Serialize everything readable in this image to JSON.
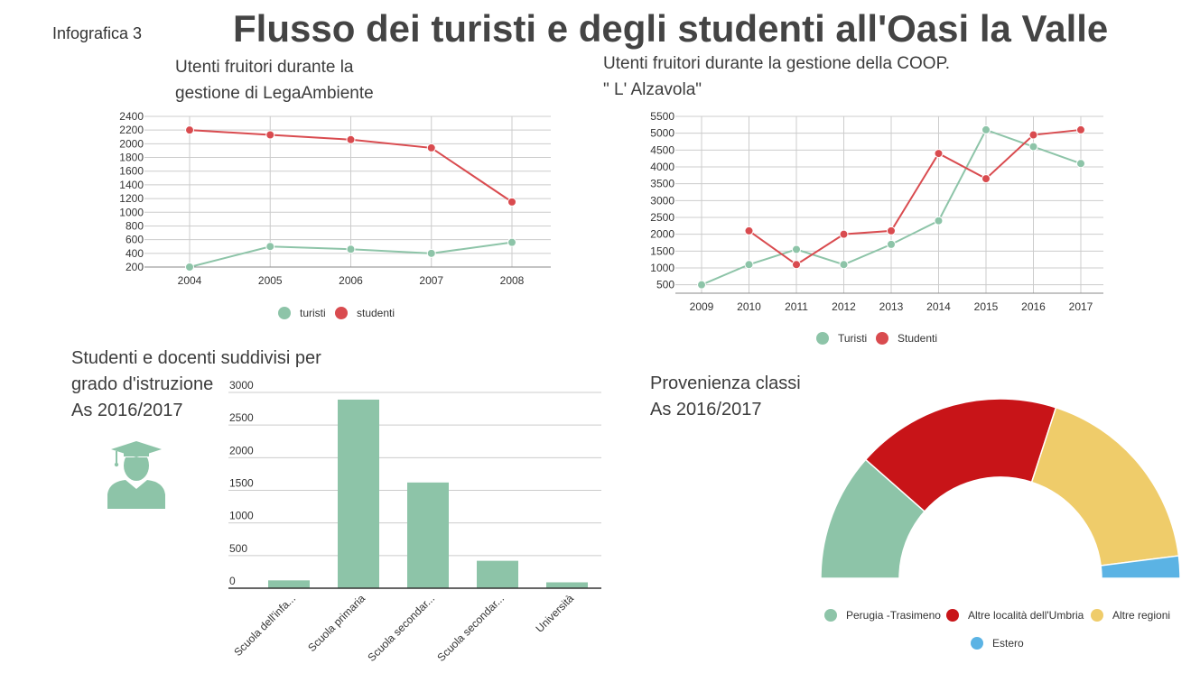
{
  "header": {
    "tag": "Infografica 3",
    "title": "Flusso dei turisti e degli studenti all'Oasi la Valle"
  },
  "colors": {
    "green": "#8dc4a8",
    "red": "#d94b4f",
    "dark_red": "#c81418",
    "yellow": "#efcc6a",
    "blue": "#5bb3e4",
    "grid": "#cccccc",
    "text": "#444444"
  },
  "icons": {
    "graduate": "graduate-icon"
  },
  "chart1": {
    "title_lines": [
      "Utenti fruitori durante la",
      "gestione di LegaAmbiente"
    ]
  },
  "chart2": {
    "title_lines": [
      "Utenti fruitori durante la gestione della COOP.",
      "\" L' Alzavola\""
    ]
  },
  "chart3": {
    "title_lines": [
      "Studenti e docenti suddivisi per",
      "grado d'istruzione",
      "As  2016/2017"
    ]
  },
  "chart4": {
    "title_lines": [
      "Provenienza classi",
      "As 2016/2017"
    ]
  },
  "chart_data": [
    {
      "type": "line",
      "x": [
        "2004",
        "2005",
        "2006",
        "2007",
        "2008"
      ],
      "series": [
        {
          "name": "turisti",
          "values": [
            200,
            500,
            460,
            400,
            560
          ]
        },
        {
          "name": "studenti",
          "values": [
            2200,
            2130,
            2060,
            1940,
            1150
          ]
        }
      ],
      "yticks": [
        200,
        400,
        600,
        800,
        1000,
        1200,
        1400,
        1600,
        1800,
        2000,
        2200,
        2400
      ],
      "ylim": [
        200,
        2400
      ],
      "legend": "bottom",
      "grid": true
    },
    {
      "type": "line",
      "x": [
        "2009",
        "2010",
        "2011",
        "2012",
        "2013",
        "2014",
        "2015",
        "2016",
        "2017"
      ],
      "series": [
        {
          "name": "Turisti",
          "values": [
            500,
            1100,
            1550,
            1100,
            1700,
            2400,
            5100,
            4600,
            4100
          ]
        },
        {
          "name": "Studenti",
          "values": [
            null,
            2100,
            1100,
            2000,
            2100,
            4400,
            3650,
            4950,
            5100
          ]
        }
      ],
      "yticks": [
        500,
        1000,
        1500,
        2000,
        2500,
        3000,
        3500,
        4000,
        4500,
        5000,
        5500
      ],
      "ylim": [
        250,
        5500
      ],
      "legend": "bottom",
      "grid": true
    },
    {
      "type": "bar",
      "categories": [
        "Scuola dell'infa...",
        "Scuola primaria",
        "Scuola secondar...",
        "Scuola secondar...",
        "Università"
      ],
      "values": [
        120,
        2890,
        1620,
        420,
        90
      ],
      "yticks": [
        0,
        500,
        1000,
        1500,
        2000,
        2500,
        3000
      ],
      "ylim": [
        0,
        3000
      ],
      "grid": true
    },
    {
      "type": "pie",
      "subtype": "half-donut",
      "labels": [
        "Perugia -Trasimeno",
        "Altre località dell'Umbria",
        "Altre regioni",
        "Estero"
      ],
      "values": [
        23,
        37,
        36,
        4
      ],
      "legend": "bottom"
    }
  ]
}
